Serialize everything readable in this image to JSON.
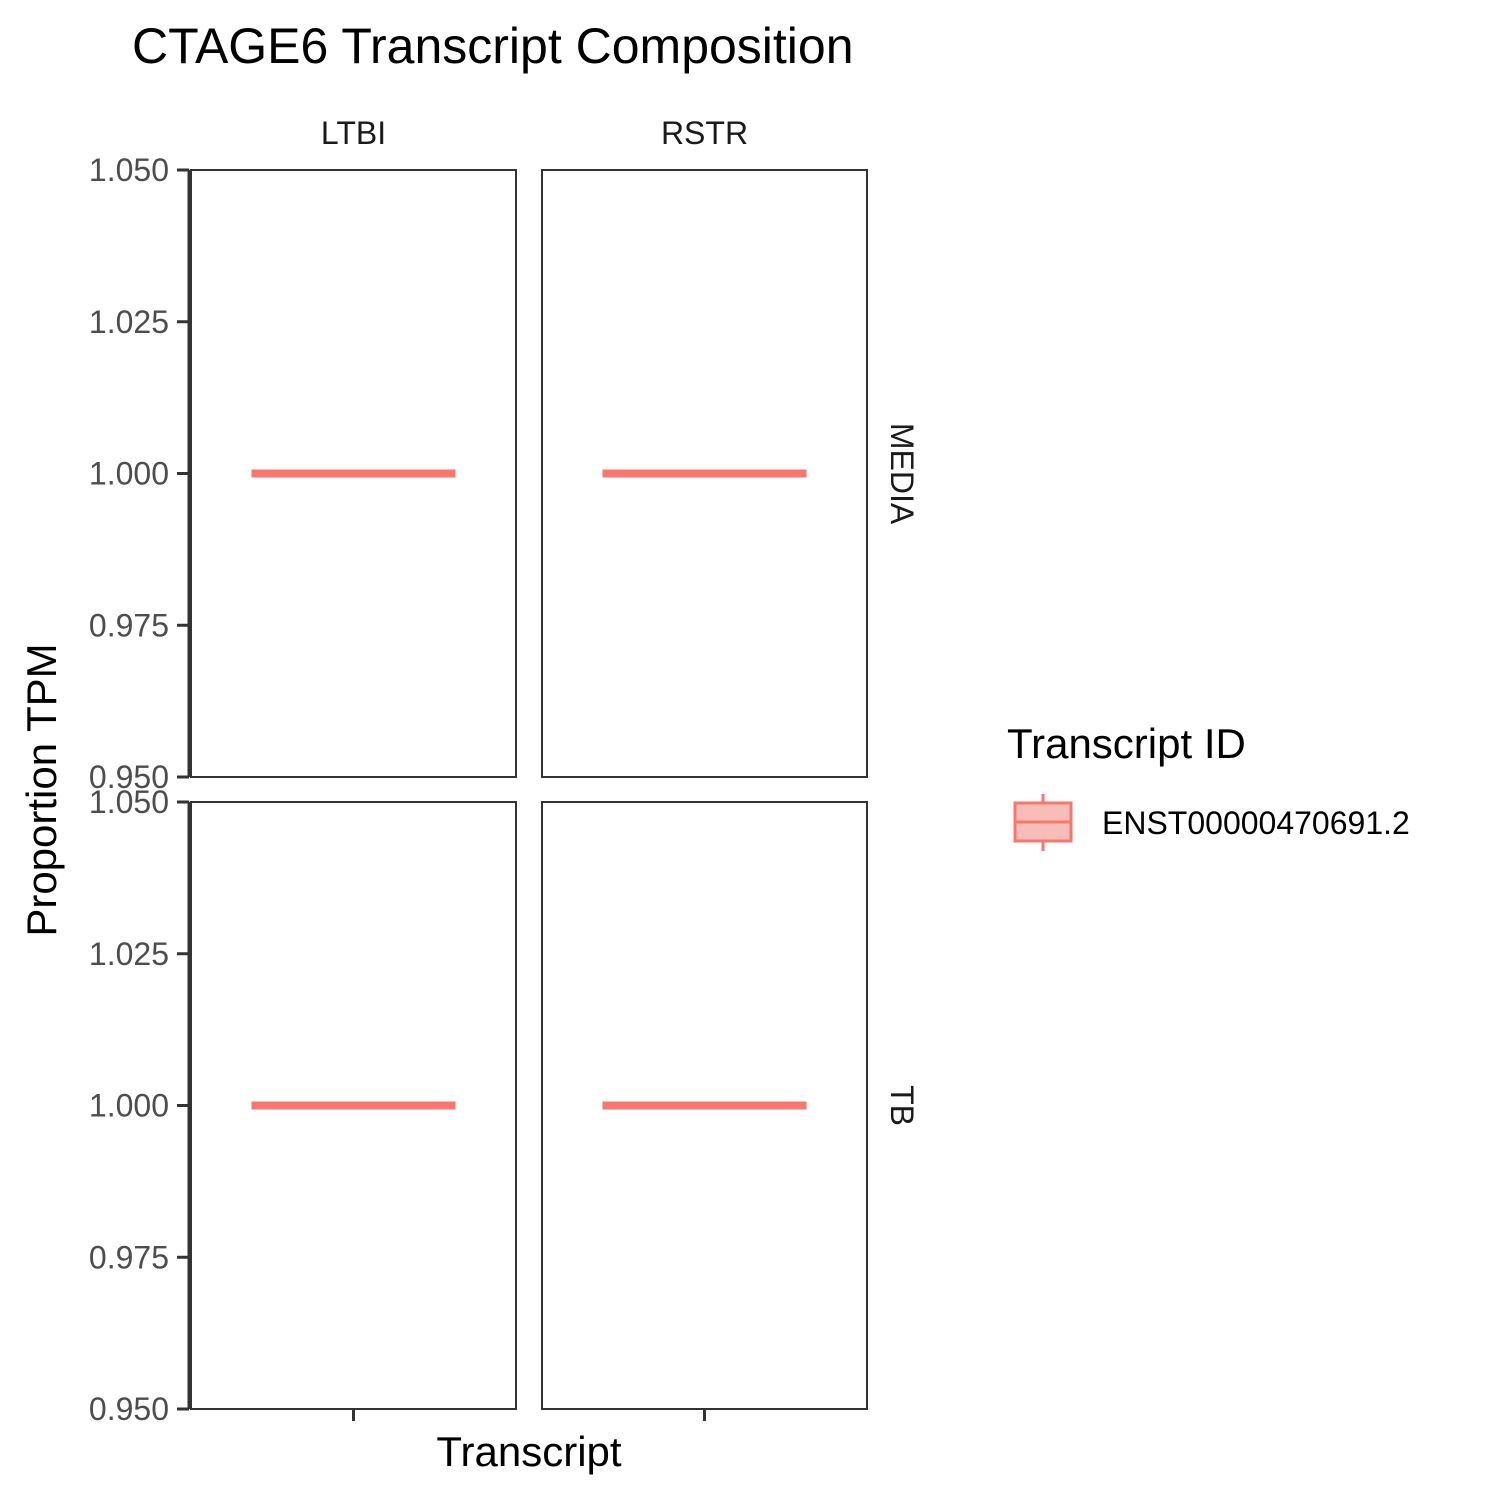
{
  "chart_data": {
    "type": "boxplot",
    "title": "CTAGE6 Transcript Composition",
    "xlabel": "Transcript",
    "ylabel": "Proportion TPM",
    "ylim": [
      0.95,
      1.05
    ],
    "yticks": [
      "1.050",
      "1.025",
      "1.000",
      "0.975",
      "0.950"
    ],
    "col_facets": [
      "LTBI",
      "RSTR"
    ],
    "row_facets": [
      "MEDIA",
      "TB"
    ],
    "legend": {
      "title": "Transcript ID",
      "position": "right",
      "entries": [
        {
          "label": "ENST00000470691.2",
          "color": "#F8766D",
          "fill": "#F8BDB8"
        }
      ]
    },
    "panels": [
      {
        "col": "LTBI",
        "row": "MEDIA",
        "transcript": "ENST00000470691.2",
        "min": 1.0,
        "q1": 1.0,
        "median": 1.0,
        "q3": 1.0,
        "max": 1.0
      },
      {
        "col": "RSTR",
        "row": "MEDIA",
        "transcript": "ENST00000470691.2",
        "min": 1.0,
        "q1": 1.0,
        "median": 1.0,
        "q3": 1.0,
        "max": 1.0
      },
      {
        "col": "LTBI",
        "row": "TB",
        "transcript": "ENST00000470691.2",
        "min": 1.0,
        "q1": 1.0,
        "median": 1.0,
        "q3": 1.0,
        "max": 1.0
      },
      {
        "col": "RSTR",
        "row": "TB",
        "transcript": "ENST00000470691.2",
        "min": 1.0,
        "q1": 1.0,
        "median": 1.0,
        "q3": 1.0,
        "max": 1.0
      }
    ],
    "grid": false
  }
}
